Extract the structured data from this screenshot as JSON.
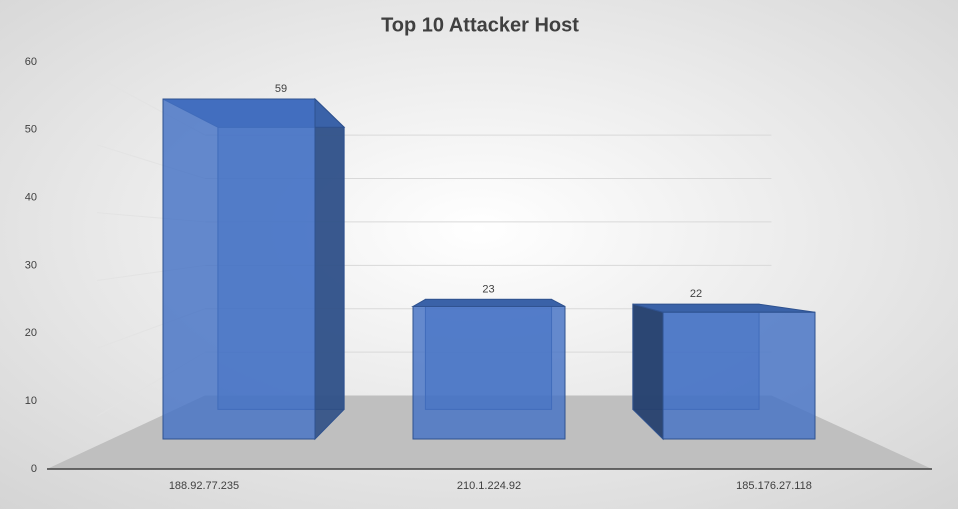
{
  "chart_data": {
    "type": "bar3d",
    "title": "Top 10 Attacker Host",
    "categories": [
      "188.92.77.235",
      "210.1.224.92",
      "185.176.27.118"
    ],
    "values": [
      59,
      23,
      22
    ],
    "color": "#4472c4",
    "ylim": [
      0,
      60
    ],
    "yticks": [
      0,
      10,
      20,
      30,
      40,
      50,
      60
    ],
    "grid": true
  }
}
